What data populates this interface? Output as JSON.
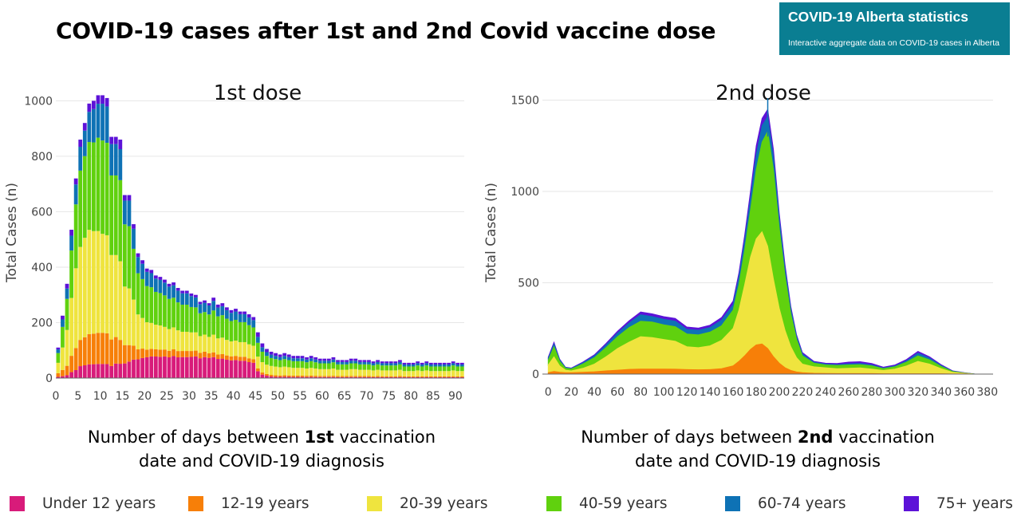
{
  "header": {
    "title": "COVID-19 cases after 1st and 2nd Covid vaccine dose",
    "brand_title": "COVID-19 Alberta statistics",
    "brand_subtitle": "Interactive aggregate data on COVID-19 cases in Alberta"
  },
  "captions": {
    "dose1_pre": "Number of days between ",
    "dose1_bold": "1st",
    "dose1_post": " vaccination",
    "dose1_line2": "date and COVID-19 diagnosis",
    "dose2_pre": "Number of days between ",
    "dose2_bold": "2nd",
    "dose2_post": " vaccination",
    "dose2_line2": "date and COVID-19 diagnosis"
  },
  "legend": [
    {
      "label": "Under 12 years",
      "color": "#d81b7a"
    },
    {
      "label": "12-19 years",
      "color": "#f77f08"
    },
    {
      "label": "20-39 years",
      "color": "#efe43e"
    },
    {
      "label": "40-59 years",
      "color": "#60d10e"
    },
    {
      "label": "60-74 years",
      "color": "#0e72b5"
    },
    {
      "label": "75+ years",
      "color": "#5c12d8"
    }
  ],
  "chart_data": [
    {
      "type": "bar",
      "stacked": true,
      "title": "1st dose",
      "ylabel": "Total Cases (n)",
      "xlabel": "Number of days between 1st vaccination date and COVID-19 diagnosis",
      "xlim": [
        0,
        92
      ],
      "ylim": [
        0,
        1050
      ],
      "xticks": [
        0,
        5,
        10,
        15,
        20,
        25,
        30,
        35,
        40,
        45,
        50,
        55,
        60,
        65,
        70,
        75,
        80,
        85,
        90
      ],
      "yticks": [
        0,
        200,
        400,
        600,
        800,
        1000
      ],
      "grid": true,
      "series_names": [
        "Under 12 years",
        "12-19 years",
        "20-39 years",
        "40-59 years",
        "60-74 years",
        "75+ years"
      ],
      "days": [
        0,
        1,
        2,
        3,
        4,
        5,
        6,
        7,
        8,
        9,
        10,
        11,
        12,
        13,
        14,
        15,
        16,
        17,
        18,
        19,
        20,
        21,
        22,
        23,
        24,
        25,
        26,
        27,
        28,
        29,
        30,
        31,
        32,
        33,
        34,
        35,
        36,
        37,
        38,
        39,
        40,
        41,
        42,
        43,
        44,
        45,
        46,
        47,
        48,
        49,
        50,
        51,
        52,
        53,
        54,
        55,
        56,
        57,
        58,
        59,
        60,
        61,
        62,
        63,
        64,
        65,
        66,
        67,
        68,
        69,
        70,
        71,
        72,
        73,
        74,
        75,
        76,
        77,
        78,
        79,
        80,
        81,
        82,
        83,
        84,
        85,
        86,
        87,
        88,
        89,
        90,
        91
      ],
      "totals": [
        110,
        225,
        340,
        535,
        720,
        860,
        920,
        990,
        1000,
        1020,
        1020,
        1010,
        870,
        870,
        860,
        660,
        660,
        555,
        450,
        425,
        395,
        390,
        370,
        365,
        355,
        340,
        345,
        325,
        315,
        315,
        305,
        300,
        275,
        280,
        270,
        290,
        265,
        270,
        255,
        245,
        250,
        240,
        240,
        230,
        220,
        165,
        125,
        105,
        95,
        90,
        85,
        90,
        85,
        80,
        80,
        80,
        75,
        80,
        75,
        70,
        70,
        70,
        75,
        65,
        65,
        65,
        70,
        70,
        65,
        65,
        65,
        60,
        65,
        60,
        60,
        60,
        60,
        65,
        55,
        55,
        55,
        60,
        55,
        60,
        55,
        55,
        55,
        55,
        55,
        60,
        55,
        55
      ],
      "shares": {
        "Under 12 years": [
          0.04,
          0.03,
          0.03,
          0.04,
          0.04,
          0.05,
          0.05,
          0.05,
          0.05,
          0.05,
          0.05,
          0.05,
          0.05,
          0.06,
          0.06,
          0.08,
          0.09,
          0.12,
          0.15,
          0.17,
          0.19,
          0.2,
          0.21,
          0.21,
          0.22,
          0.22,
          0.23,
          0.23,
          0.24,
          0.24,
          0.25,
          0.26,
          0.26,
          0.27,
          0.27,
          0.26,
          0.26,
          0.26,
          0.26,
          0.26,
          0.26,
          0.26,
          0.26,
          0.25,
          0.25,
          0.15,
          0.1,
          0.08,
          0.06,
          0.05,
          0.05,
          0.05,
          0.05,
          0.05,
          0.05,
          0.05,
          0.05,
          0.05,
          0.05,
          0.05,
          0.05,
          0.05,
          0.05,
          0.05,
          0.05,
          0.05,
          0.05,
          0.05,
          0.05,
          0.05,
          0.05,
          0.05,
          0.05,
          0.05,
          0.05,
          0.05,
          0.05,
          0.05,
          0.05,
          0.05,
          0.05,
          0.05,
          0.05,
          0.05,
          0.05,
          0.05,
          0.05,
          0.05,
          0.05,
          0.05,
          0.05,
          0.05
        ],
        "12-19 years": [
          0.12,
          0.1,
          0.1,
          0.11,
          0.11,
          0.11,
          0.11,
          0.11,
          0.11,
          0.11,
          0.11,
          0.11,
          0.11,
          0.11,
          0.1,
          0.1,
          0.09,
          0.09,
          0.08,
          0.08,
          0.07,
          0.07,
          0.07,
          0.07,
          0.07,
          0.07,
          0.07,
          0.07,
          0.07,
          0.07,
          0.07,
          0.07,
          0.07,
          0.07,
          0.06,
          0.06,
          0.06,
          0.06,
          0.06,
          0.06,
          0.06,
          0.06,
          0.06,
          0.06,
          0.06,
          0.06,
          0.06,
          0.06,
          0.06,
          0.06,
          0.06,
          0.06,
          0.06,
          0.06,
          0.06,
          0.06,
          0.06,
          0.06,
          0.06,
          0.06,
          0.06,
          0.06,
          0.06,
          0.06,
          0.06,
          0.06,
          0.06,
          0.06,
          0.06,
          0.06,
          0.06,
          0.06,
          0.06,
          0.06,
          0.06,
          0.06,
          0.06,
          0.06,
          0.06,
          0.06,
          0.06,
          0.06,
          0.06,
          0.06,
          0.06,
          0.06,
          0.06,
          0.06,
          0.06,
          0.06,
          0.06,
          0.06
        ],
        "20-39 years": [
          0.34,
          0.36,
          0.38,
          0.39,
          0.4,
          0.39,
          0.39,
          0.38,
          0.37,
          0.36,
          0.35,
          0.35,
          0.35,
          0.34,
          0.33,
          0.32,
          0.31,
          0.3,
          0.28,
          0.26,
          0.25,
          0.24,
          0.24,
          0.24,
          0.23,
          0.23,
          0.23,
          0.23,
          0.22,
          0.22,
          0.22,
          0.22,
          0.22,
          0.22,
          0.22,
          0.22,
          0.22,
          0.22,
          0.22,
          0.22,
          0.22,
          0.22,
          0.22,
          0.22,
          0.22,
          0.26,
          0.3,
          0.32,
          0.34,
          0.35,
          0.35,
          0.35,
          0.35,
          0.35,
          0.35,
          0.35,
          0.35,
          0.35,
          0.35,
          0.35,
          0.35,
          0.35,
          0.35,
          0.35,
          0.35,
          0.35,
          0.35,
          0.35,
          0.35,
          0.35,
          0.35,
          0.35,
          0.35,
          0.35,
          0.35,
          0.35,
          0.35,
          0.35,
          0.35,
          0.35,
          0.35,
          0.35,
          0.35,
          0.35,
          0.35,
          0.35,
          0.35,
          0.35,
          0.35,
          0.35,
          0.35,
          0.35
        ],
        "40-59 years": [
          0.32,
          0.33,
          0.33,
          0.32,
          0.32,
          0.32,
          0.32,
          0.32,
          0.32,
          0.33,
          0.33,
          0.33,
          0.33,
          0.33,
          0.34,
          0.34,
          0.34,
          0.33,
          0.33,
          0.33,
          0.33,
          0.33,
          0.32,
          0.32,
          0.32,
          0.32,
          0.31,
          0.31,
          0.31,
          0.31,
          0.3,
          0.3,
          0.3,
          0.29,
          0.3,
          0.3,
          0.3,
          0.3,
          0.3,
          0.3,
          0.3,
          0.3,
          0.3,
          0.3,
          0.3,
          0.3,
          0.3,
          0.3,
          0.3,
          0.3,
          0.3,
          0.3,
          0.3,
          0.3,
          0.3,
          0.3,
          0.3,
          0.3,
          0.3,
          0.3,
          0.3,
          0.3,
          0.3,
          0.3,
          0.3,
          0.3,
          0.3,
          0.3,
          0.3,
          0.3,
          0.3,
          0.3,
          0.3,
          0.3,
          0.3,
          0.3,
          0.3,
          0.3,
          0.3,
          0.3,
          0.3,
          0.3,
          0.3,
          0.3,
          0.3,
          0.3,
          0.3,
          0.3,
          0.3,
          0.3,
          0.3,
          0.3
        ],
        "60-74 years": [
          0.12,
          0.12,
          0.11,
          0.1,
          0.1,
          0.1,
          0.1,
          0.11,
          0.12,
          0.12,
          0.13,
          0.13,
          0.13,
          0.13,
          0.13,
          0.13,
          0.14,
          0.13,
          0.13,
          0.13,
          0.13,
          0.13,
          0.13,
          0.13,
          0.13,
          0.13,
          0.13,
          0.13,
          0.13,
          0.13,
          0.13,
          0.12,
          0.12,
          0.12,
          0.12,
          0.12,
          0.12,
          0.12,
          0.12,
          0.12,
          0.12,
          0.12,
          0.12,
          0.12,
          0.12,
          0.13,
          0.13,
          0.13,
          0.13,
          0.13,
          0.13,
          0.13,
          0.13,
          0.13,
          0.13,
          0.13,
          0.13,
          0.13,
          0.13,
          0.13,
          0.13,
          0.13,
          0.13,
          0.13,
          0.13,
          0.13,
          0.13,
          0.13,
          0.13,
          0.13,
          0.13,
          0.13,
          0.13,
          0.13,
          0.13,
          0.13,
          0.13,
          0.13,
          0.13,
          0.13,
          0.13,
          0.13,
          0.13,
          0.13,
          0.13,
          0.13,
          0.13,
          0.13,
          0.13,
          0.13,
          0.13,
          0.13
        ],
        "75+ years": [
          0.06,
          0.06,
          0.05,
          0.04,
          0.03,
          0.03,
          0.03,
          0.03,
          0.03,
          0.03,
          0.03,
          0.03,
          0.03,
          0.03,
          0.04,
          0.03,
          0.03,
          0.03,
          0.03,
          0.03,
          0.03,
          0.03,
          0.03,
          0.03,
          0.03,
          0.03,
          0.03,
          0.03,
          0.03,
          0.03,
          0.03,
          0.03,
          0.03,
          0.03,
          0.03,
          0.04,
          0.04,
          0.04,
          0.04,
          0.04,
          0.04,
          0.04,
          0.04,
          0.05,
          0.05,
          0.1,
          0.11,
          0.11,
          0.11,
          0.11,
          0.11,
          0.11,
          0.11,
          0.11,
          0.11,
          0.11,
          0.11,
          0.11,
          0.11,
          0.11,
          0.11,
          0.11,
          0.11,
          0.11,
          0.11,
          0.11,
          0.11,
          0.11,
          0.11,
          0.11,
          0.11,
          0.11,
          0.11,
          0.11,
          0.11,
          0.11,
          0.11,
          0.11,
          0.11,
          0.11,
          0.11,
          0.11,
          0.11,
          0.11,
          0.11,
          0.11,
          0.11,
          0.11,
          0.11,
          0.11,
          0.11,
          0.11
        ]
      }
    },
    {
      "type": "area",
      "stacked": true,
      "title": "2nd dose",
      "ylabel": "Total Cases (n)",
      "xlabel": "Number of days between 2nd vaccination date and COVID-19 diagnosis",
      "xlim": [
        -5,
        385
      ],
      "ylim": [
        0,
        1550
      ],
      "xticks": [
        0,
        20,
        40,
        60,
        80,
        100,
        120,
        140,
        160,
        180,
        200,
        220,
        240,
        260,
        280,
        300,
        320,
        340,
        360,
        380
      ],
      "yticks": [
        0,
        500,
        1000,
        1500
      ],
      "grid": true,
      "series_names": [
        "Under 12 years",
        "12-19 years",
        "20-39 years",
        "40-59 years",
        "60-74 years",
        "75+ years"
      ],
      "x": [
        0,
        5,
        10,
        15,
        20,
        30,
        40,
        50,
        60,
        70,
        80,
        90,
        100,
        110,
        120,
        130,
        140,
        150,
        160,
        165,
        170,
        175,
        180,
        185,
        190,
        195,
        200,
        205,
        210,
        215,
        220,
        230,
        240,
        250,
        260,
        270,
        280,
        290,
        300,
        310,
        320,
        330,
        340,
        350,
        360,
        370,
        380
      ],
      "cumulative": {
        "Under 12 years": [
          0,
          0,
          0,
          0,
          0,
          0,
          0,
          0,
          0,
          0,
          0,
          0,
          0,
          0,
          0,
          0,
          0,
          0,
          0,
          0,
          0,
          0,
          0,
          0,
          0,
          0,
          0,
          0,
          0,
          0,
          0,
          0,
          0,
          0,
          0,
          0,
          0,
          0,
          0,
          0,
          0,
          0,
          0,
          0,
          0,
          0,
          0
        ],
        "12-19 years": [
          8,
          15,
          10,
          8,
          8,
          10,
          13,
          18,
          22,
          26,
          28,
          28,
          28,
          27,
          25,
          24,
          25,
          30,
          45,
          70,
          100,
          135,
          160,
          165,
          140,
          95,
          60,
          35,
          20,
          12,
          8,
          5,
          4,
          3,
          3,
          3,
          3,
          2,
          2,
          2,
          2,
          2,
          2,
          1,
          1,
          0,
          0
        ],
        "20-39 years": [
          50,
          95,
          45,
          22,
          18,
          32,
          55,
          95,
          140,
          175,
          205,
          200,
          190,
          180,
          150,
          145,
          155,
          185,
          250,
          350,
          490,
          640,
          740,
          780,
          700,
          520,
          360,
          240,
          150,
          90,
          55,
          40,
          35,
          30,
          32,
          34,
          28,
          20,
          28,
          45,
          70,
          55,
          30,
          10,
          5,
          0,
          0
        ],
        "40-59 years": [
          75,
          150,
          70,
          32,
          28,
          55,
          90,
          145,
          205,
          255,
          290,
          285,
          270,
          260,
          220,
          215,
          230,
          265,
          350,
          490,
          680,
          900,
          1120,
          1270,
          1330,
          1120,
          800,
          540,
          330,
          190,
          100,
          60,
          50,
          47,
          50,
          52,
          45,
          30,
          40,
          65,
          100,
          78,
          42,
          14,
          6,
          0,
          0
        ],
        "60-74 years": [
          85,
          165,
          78,
          36,
          31,
          62,
          100,
          160,
          225,
          280,
          325,
          315,
          300,
          290,
          245,
          240,
          255,
          295,
          380,
          530,
          730,
          960,
          1200,
          1360,
          1410,
          1190,
          850,
          575,
          355,
          205,
          110,
          65,
          55,
          52,
          56,
          58,
          50,
          33,
          44,
          72,
          115,
          88,
          47,
          16,
          7,
          0,
          0
        ],
        "75+ years": [
          92,
          175,
          82,
          38,
          33,
          66,
          106,
          168,
          235,
          292,
          340,
          330,
          315,
          305,
          258,
          252,
          268,
          310,
          400,
          555,
          760,
          1000,
          1250,
          1400,
          1450,
          1230,
          880,
          600,
          370,
          215,
          118,
          70,
          60,
          58,
          66,
          68,
          58,
          38,
          50,
          80,
          125,
          95,
          52,
          18,
          8,
          0,
          0
        ]
      },
      "peak_spike": {
        "x": 190,
        "y": 1510
      }
    }
  ]
}
